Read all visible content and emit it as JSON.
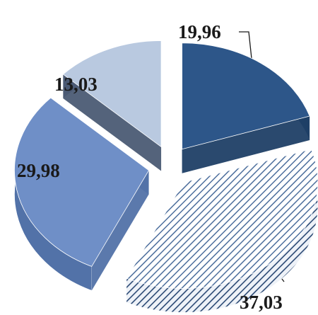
{
  "chart_data": {
    "type": "pie",
    "title": "",
    "slices": [
      {
        "label": "19,96",
        "value": 19.96,
        "color": "#2d5689",
        "side_color": "#1f3f66",
        "pattern": "solid"
      },
      {
        "label": "37,03",
        "value": 37.03,
        "color": "#a9bfdc",
        "side_color": "#7690b4",
        "pattern": "hatched"
      },
      {
        "label": "29,98",
        "value": 29.98,
        "color": "#6f8fc7",
        "side_color": "#5272a8",
        "pattern": "solid"
      },
      {
        "label": "13,03",
        "value": 13.03,
        "color": "#b9c9e0",
        "side_color": "#4b5b74",
        "pattern": "solid"
      }
    ],
    "style": "3d-exploded"
  }
}
